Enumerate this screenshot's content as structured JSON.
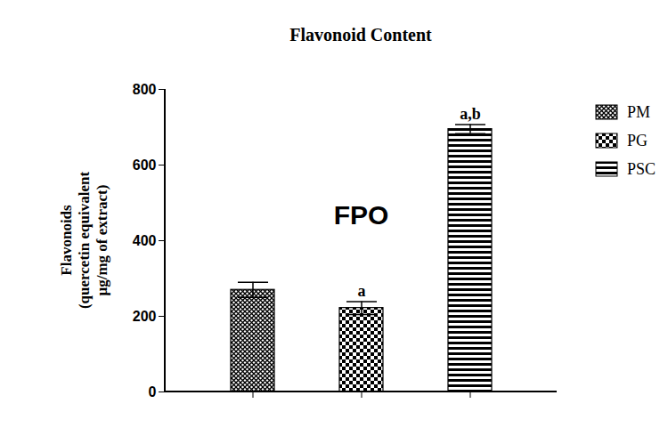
{
  "chart_data": {
    "type": "bar",
    "title": "Flavonoid Content",
    "y_label": "Flavonoids\n(quercetin equivalent\nμg/mg of extract)",
    "categories": [
      null,
      null,
      null
    ],
    "series": [
      {
        "name": "PM",
        "color": "#000000",
        "values": [
          270,
          null,
          null
        ],
        "errors": [
          20,
          null,
          null
        ],
        "significance": [
          null,
          null,
          null
        ]
      },
      {
        "name": "PG",
        "color": "#000000",
        "values": [
          null,
          222,
          null
        ],
        "errors": [
          null,
          17,
          null
        ],
        "significance": [
          null,
          "a",
          null
        ]
      },
      {
        "name": "PSC",
        "color": "#000000",
        "values": [
          null,
          null,
          695
        ],
        "errors": [
          null,
          null,
          12
        ],
        "significance": [
          null,
          null,
          "a,b"
        ]
      }
    ],
    "annotations": [
      "FPO"
    ],
    "ylim": [
      0,
      800
    ],
    "yticks": [
      0,
      200,
      400,
      600,
      800
    ],
    "grid": false,
    "legend": "top-right",
    "stacked": false
  }
}
